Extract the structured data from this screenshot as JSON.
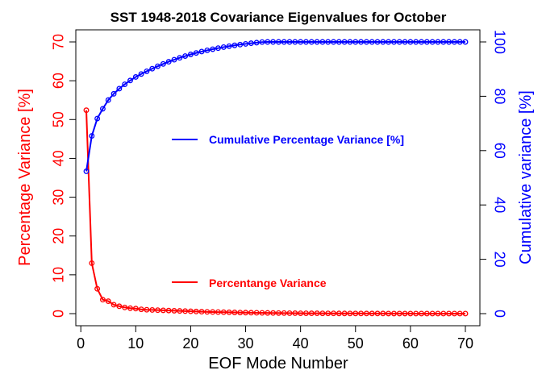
{
  "chart_data": {
    "type": "line",
    "title": "SST 1948-2018 Covariance Eigenvalues for October",
    "xlabel": "EOF Mode Number",
    "ylabel_left": "Percentage Variance [%]",
    "ylabel_right": "Cumulative variance [%]",
    "xlim": [
      1,
      70
    ],
    "ylim_left": [
      0,
      70
    ],
    "ylim_right": [
      0,
      100
    ],
    "x_ticks": [
      0,
      10,
      20,
      30,
      40,
      50,
      60,
      70
    ],
    "y_left_ticks": [
      0,
      10,
      20,
      30,
      40,
      50,
      60,
      70
    ],
    "y_right_ticks": [
      0,
      20,
      40,
      60,
      80,
      100
    ],
    "grid": false,
    "colors": {
      "percentage": "#ff0000",
      "cumulative": "#0000ff",
      "axes": "#000000"
    },
    "series": [
      {
        "name": "Percentange Variance",
        "axis": "left",
        "color": "#ff0000",
        "x": [
          1,
          2,
          3,
          4,
          5,
          6,
          7,
          8,
          9,
          10,
          11,
          12,
          13,
          14,
          15,
          16,
          17,
          18,
          19,
          20,
          21,
          22,
          23,
          24,
          25,
          26,
          27,
          28,
          29,
          30,
          31,
          32,
          33,
          34,
          35,
          36,
          37,
          38,
          39,
          40,
          41,
          42,
          43,
          44,
          45,
          46,
          47,
          48,
          49,
          50,
          51,
          52,
          53,
          54,
          55,
          56,
          57,
          58,
          59,
          60,
          61,
          62,
          63,
          64,
          65,
          66,
          67,
          68,
          69,
          70
        ],
        "values": [
          52.4,
          13.0,
          6.4,
          3.6,
          3.2,
          2.3,
          1.9,
          1.6,
          1.4,
          1.3,
          1.1,
          1.0,
          0.95,
          0.9,
          0.85,
          0.8,
          0.75,
          0.7,
          0.65,
          0.6,
          0.55,
          0.5,
          0.45,
          0.42,
          0.4,
          0.37,
          0.34,
          0.31,
          0.28,
          0.26,
          0.24,
          0.22,
          0.2,
          0.18,
          0.16,
          0.15,
          0.14,
          0.12,
          0.11,
          0.1,
          0.09,
          0.08,
          0.08,
          0.07,
          0.06,
          0.06,
          0.05,
          0.05,
          0.04,
          0.04,
          0.04,
          0.03,
          0.03,
          0.03,
          0.03,
          0.02,
          0.02,
          0.02,
          0.02,
          0.02,
          0.01,
          0.01,
          0.01,
          0.01,
          0.01,
          0.01,
          0.01,
          0.01,
          0.01,
          0.01
        ]
      },
      {
        "name": "Cumulative Percentage Variance [%]",
        "axis": "right",
        "color": "#0000ff",
        "x": [
          1,
          2,
          3,
          4,
          5,
          6,
          7,
          8,
          9,
          10,
          11,
          12,
          13,
          14,
          15,
          16,
          17,
          18,
          19,
          20,
          21,
          22,
          23,
          24,
          25,
          26,
          27,
          28,
          29,
          30,
          31,
          32,
          33,
          34,
          35,
          36,
          37,
          38,
          39,
          40,
          41,
          42,
          43,
          44,
          45,
          46,
          47,
          48,
          49,
          50,
          51,
          52,
          53,
          54,
          55,
          56,
          57,
          58,
          59,
          60,
          61,
          62,
          63,
          64,
          65,
          66,
          67,
          68,
          69,
          70
        ],
        "values": [
          52.4,
          65.4,
          71.8,
          75.4,
          78.6,
          80.9,
          82.8,
          84.4,
          85.8,
          87.1,
          88.2,
          89.2,
          90.15,
          91.05,
          91.9,
          92.7,
          93.45,
          94.15,
          94.8,
          95.4,
          95.95,
          96.45,
          96.9,
          97.32,
          97.72,
          98.09,
          98.43,
          98.74,
          99.02,
          99.28,
          99.52,
          99.74,
          99.94,
          100.0,
          100.0,
          100.0,
          100.0,
          100.0,
          100.0,
          100.0,
          100.0,
          100.0,
          100.0,
          100.0,
          100.0,
          100.0,
          100.0,
          100.0,
          100.0,
          100.0,
          100.0,
          100.0,
          100.0,
          100.0,
          100.0,
          100.0,
          100.0,
          100.0,
          100.0,
          100.0,
          100.0,
          100.0,
          100.0,
          100.0,
          100.0,
          100.0,
          100.0,
          100.0,
          100.0,
          100.0
        ]
      }
    ],
    "legend": [
      {
        "label": "Cumulative Percentage Variance [%]",
        "color": "#0000ff"
      },
      {
        "label": "Percentange Variance",
        "color": "#ff0000"
      }
    ]
  }
}
